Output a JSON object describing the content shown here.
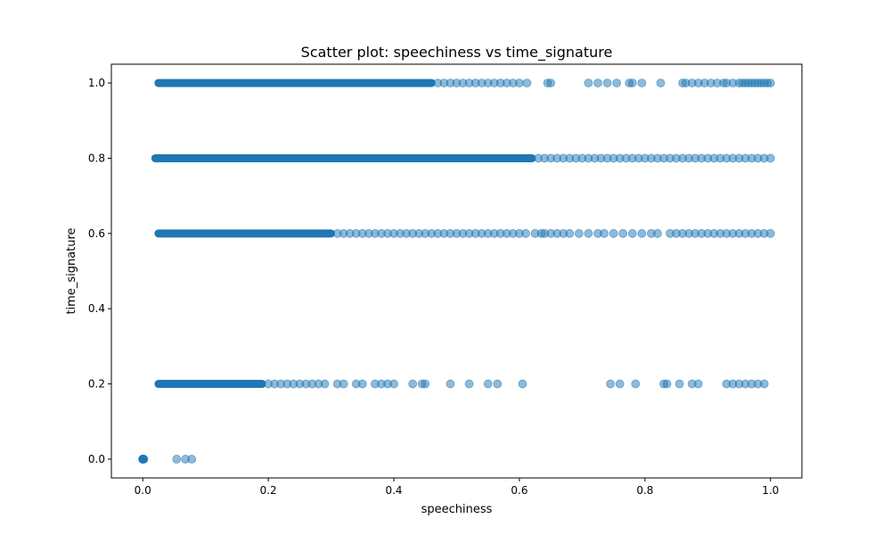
{
  "chart_data": {
    "type": "scatter",
    "title": "Scatter plot: speechiness vs time_signature",
    "xlabel": "speechiness",
    "ylabel": "time_signature",
    "xlim": [
      -0.05,
      1.05
    ],
    "ylim": [
      -0.05,
      1.05
    ],
    "xticks": [
      0.0,
      0.2,
      0.4,
      0.6,
      0.8,
      1.0
    ],
    "yticks": [
      0.0,
      0.2,
      0.4,
      0.6,
      0.8,
      1.0
    ],
    "xtick_labels": [
      "0.0",
      "0.2",
      "0.4",
      "0.6",
      "0.8",
      "1.0"
    ],
    "ytick_labels": [
      "0.0",
      "0.2",
      "0.4",
      "0.6",
      "0.8",
      "1.0"
    ],
    "grid": false,
    "marker_color": "#1f77b4",
    "marker_alpha": 0.5,
    "rows": [
      {
        "y": 1.0,
        "x_dense": [
          0.025,
          0.46
        ],
        "x": [
          0.47,
          0.48,
          0.49,
          0.5,
          0.51,
          0.52,
          0.53,
          0.54,
          0.55,
          0.56,
          0.57,
          0.58,
          0.59,
          0.6,
          0.612,
          0.645,
          0.65,
          0.71,
          0.725,
          0.74,
          0.755,
          0.775,
          0.78,
          0.795,
          0.825,
          0.86,
          0.865,
          0.875,
          0.885,
          0.895,
          0.905,
          0.915,
          0.925,
          0.93,
          0.94,
          0.95,
          0.955,
          0.96,
          0.965,
          0.97,
          0.975,
          0.98,
          0.985,
          0.99,
          0.995,
          1.0
        ]
      },
      {
        "y": 0.8,
        "x_dense": [
          0.02,
          0.62
        ],
        "x": [
          0.63,
          0.64,
          0.65,
          0.66,
          0.67,
          0.68,
          0.69,
          0.7,
          0.71,
          0.72,
          0.73,
          0.74,
          0.75,
          0.76,
          0.77,
          0.78,
          0.79,
          0.8,
          0.81,
          0.82,
          0.83,
          0.84,
          0.85,
          0.86,
          0.87,
          0.88,
          0.89,
          0.9,
          0.91,
          0.92,
          0.93,
          0.94,
          0.95,
          0.96,
          0.97,
          0.98,
          0.99,
          1.0
        ]
      },
      {
        "y": 0.6,
        "x_dense": [
          0.025,
          0.3
        ],
        "x": [
          0.31,
          0.32,
          0.33,
          0.34,
          0.35,
          0.36,
          0.37,
          0.38,
          0.39,
          0.4,
          0.41,
          0.42,
          0.43,
          0.44,
          0.45,
          0.46,
          0.47,
          0.48,
          0.49,
          0.5,
          0.51,
          0.52,
          0.53,
          0.54,
          0.55,
          0.56,
          0.57,
          0.58,
          0.59,
          0.6,
          0.61,
          0.625,
          0.635,
          0.64,
          0.65,
          0.66,
          0.67,
          0.68,
          0.695,
          0.71,
          0.725,
          0.735,
          0.75,
          0.765,
          0.78,
          0.795,
          0.81,
          0.82,
          0.84,
          0.85,
          0.86,
          0.87,
          0.88,
          0.89,
          0.9,
          0.91,
          0.92,
          0.93,
          0.94,
          0.95,
          0.96,
          0.97,
          0.98,
          0.99,
          1.0
        ]
      },
      {
        "y": 0.2,
        "x_dense": [
          0.025,
          0.19
        ],
        "x": [
          0.2,
          0.21,
          0.22,
          0.23,
          0.24,
          0.25,
          0.26,
          0.27,
          0.28,
          0.29,
          0.31,
          0.32,
          0.34,
          0.35,
          0.37,
          0.38,
          0.39,
          0.4,
          0.43,
          0.445,
          0.45,
          0.49,
          0.52,
          0.55,
          0.565,
          0.605,
          0.745,
          0.76,
          0.785,
          0.83,
          0.835,
          0.855,
          0.875,
          0.885,
          0.93,
          0.94,
          0.95,
          0.96,
          0.97,
          0.98,
          0.99
        ]
      },
      {
        "y": 0.0,
        "x_dense": [
          0.0,
          0.0
        ],
        "x": [
          0.0,
          0.001,
          0.002,
          0.054,
          0.068,
          0.078
        ]
      }
    ]
  }
}
